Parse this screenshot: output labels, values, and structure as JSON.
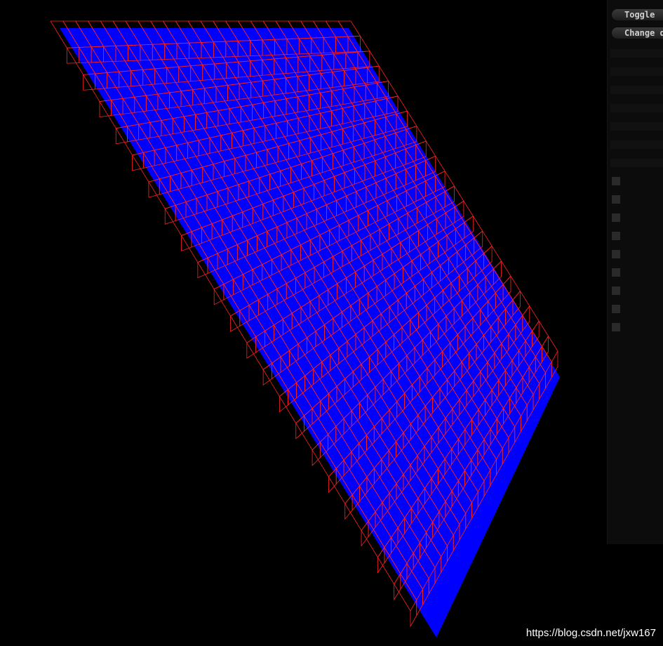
{
  "panel": {
    "buttons": [
      "Toggle",
      "Change d"
    ]
  },
  "watermark": "https://blog.csdn.net/jxw167"
}
